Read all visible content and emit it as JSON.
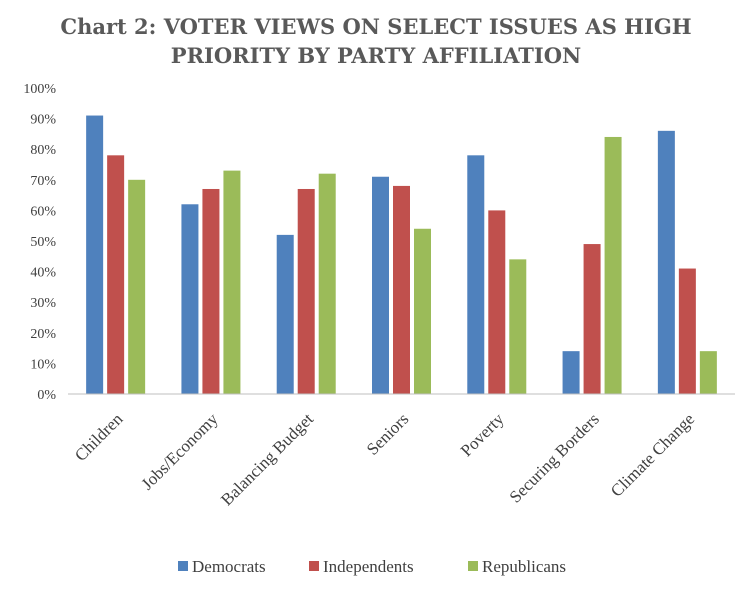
{
  "chart_data": {
    "type": "bar",
    "title_line1": "Chart 2: VOTER VIEWS ON SELECT ISSUES AS HIGH",
    "title_line2": "PRIORITY BY PARTY AFFILIATION",
    "categories": [
      "Children",
      "Jobs/Economy",
      "Balancing Budget",
      "Seniors",
      "Poverty",
      "Securing Borders",
      "Climate Change"
    ],
    "series": [
      {
        "name": "Democrats",
        "color": "#4f81bd",
        "values": [
          91,
          62,
          52,
          71,
          78,
          14,
          86
        ]
      },
      {
        "name": "Independents",
        "color": "#c0504d",
        "values": [
          78,
          67,
          67,
          68,
          60,
          49,
          41
        ]
      },
      {
        "name": "Republicans",
        "color": "#9bbb59",
        "values": [
          70,
          73,
          72,
          54,
          44,
          84,
          14
        ]
      }
    ],
    "ylim": [
      0,
      100
    ],
    "yticks": [
      "0%",
      "10%",
      "20%",
      "30%",
      "40%",
      "50%",
      "60%",
      "70%",
      "80%",
      "90%",
      "100%"
    ],
    "grid": false,
    "legend_position": "bottom"
  }
}
